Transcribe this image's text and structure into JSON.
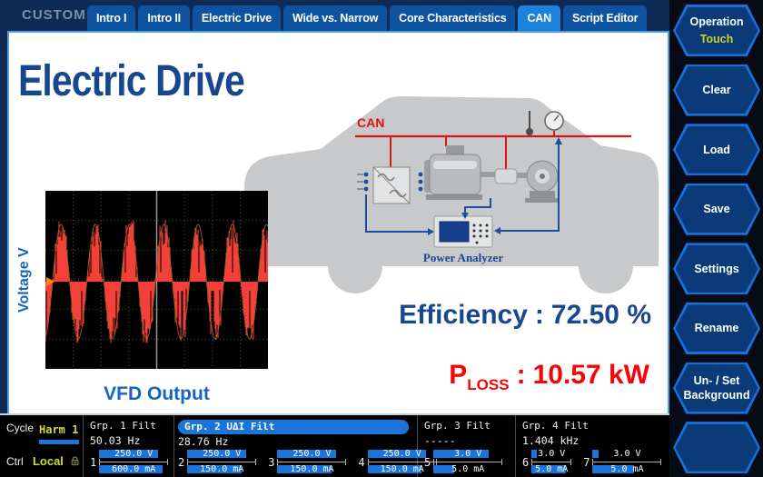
{
  "header": {
    "mode_label": "CUSTOM",
    "tabs": [
      {
        "label": "Intro I",
        "active": false
      },
      {
        "label": "Intro II",
        "active": false
      },
      {
        "label": "Electric Drive",
        "active": false
      },
      {
        "label": "Wide vs. Narrow",
        "active": false
      },
      {
        "label": "Core Characteristics",
        "active": false
      },
      {
        "label": "CAN",
        "active": true
      },
      {
        "label": "Script Editor",
        "active": false
      }
    ]
  },
  "sidebar": {
    "buttons": [
      {
        "label": "Operation",
        "sublabel": "Touch"
      },
      {
        "label": "Clear",
        "sublabel": ""
      },
      {
        "label": "Load",
        "sublabel": ""
      },
      {
        "label": "Save",
        "sublabel": ""
      },
      {
        "label": "Settings",
        "sublabel": ""
      },
      {
        "label": "Rename",
        "sublabel": ""
      },
      {
        "label": "Un- / Set",
        "sublabel2": "Background"
      },
      {
        "label": "",
        "sublabel": ""
      }
    ]
  },
  "main": {
    "title": "Electric Drive",
    "diagram": {
      "bus_label": "CAN",
      "device_label": "Power Analyzer"
    },
    "scope": {
      "ylabel": "Voltage V",
      "caption": "VFD Output",
      "wave": {
        "cycles": 6.5,
        "phase": -1.31,
        "amplitude": 0.7,
        "trace_color": "#f5403a",
        "fundamental_color": "#b06020",
        "trigger_color": "#ff8a00"
      }
    },
    "metrics": {
      "efficiency": {
        "label": "Efficiency",
        "separator": ":",
        "value": "72.50 %"
      },
      "ploss": {
        "symbol": "P",
        "subscript": "LOSS",
        "separator": ":",
        "value": "10.57 kW"
      }
    }
  },
  "statusbar": {
    "cycle": {
      "label": "Cycle",
      "value": "Harm 1"
    },
    "ctrl": {
      "label": "Ctrl",
      "value": "Local",
      "lock_state": "locked"
    },
    "groups": [
      {
        "name": "Grp. 1 Filt",
        "freq": "50.03 Hz",
        "selected": false
      },
      {
        "name": "Grp. 2 UΔI Filt",
        "freq": "28.76 Hz",
        "selected": true
      },
      {
        "name": "Grp. 3 Filt",
        "freq": "-----",
        "selected": false
      },
      {
        "name": "Grp. 4 Filt",
        "freq": "1.404 kHz",
        "selected": false
      }
    ],
    "channels": [
      {
        "num": "1",
        "voltage": "250.0 V",
        "voltage_level": 85,
        "current": "600.0 mA",
        "current_level": 92
      },
      {
        "num": "2",
        "voltage": "250.0 V",
        "voltage_level": 85,
        "current": "150.0 mA",
        "current_level": 78
      },
      {
        "num": "3",
        "voltage": "250.0 V",
        "voltage_level": 85,
        "current": "150.0 mA",
        "current_level": 78
      },
      {
        "num": "4",
        "voltage": "250.0 V",
        "voltage_level": 85,
        "current": "150.0 mA",
        "current_level": 78
      },
      {
        "num": "5",
        "voltage": "3.0 V",
        "voltage_level": 80,
        "current": "5.0 mA",
        "current_level": 30
      },
      {
        "num": "6",
        "voltage": "3.0 V",
        "voltage_level": 12,
        "current": "5.0 mA",
        "current_level": 85
      },
      {
        "num": "7",
        "voltage": "3.0 V",
        "voltage_level": 9,
        "current": "5.0 mA",
        "current_level": 60
      }
    ]
  },
  "theme": {
    "accent_blue": "#1d74d8",
    "active_tab_blue": "#1d82dd",
    "inactive_tab_blue": "#0f52a0",
    "warning_yellow": "#ccd32f",
    "alert_red": "#f60508",
    "title_blue": "#17478f",
    "can_red": "#e01212"
  }
}
